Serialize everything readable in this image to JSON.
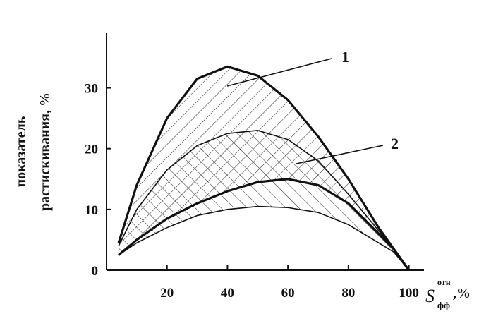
{
  "chart_data": {
    "type": "band",
    "y_label": [
      "показатель",
      "растискивания, %"
    ],
    "x_label": {
      "main": "S",
      "sup": "отн",
      "sub": "фф",
      "suffix": ",%"
    },
    "xlim": [
      0,
      105
    ],
    "ylim": [
      0,
      39
    ],
    "xticks": [
      20,
      40,
      60,
      80,
      100
    ],
    "yticks": [
      0,
      10,
      20,
      30
    ],
    "x": [
      4,
      10,
      20,
      30,
      40,
      50,
      60,
      70,
      80,
      90,
      95,
      100
    ],
    "bands": [
      {
        "name": "1",
        "line": "thick",
        "hatch": "/",
        "upper": [
          4.5,
          14,
          25,
          31.5,
          33.5,
          32,
          28,
          22,
          15,
          7,
          3.5,
          0
        ],
        "lower": [
          2.5,
          5,
          8.5,
          11,
          13,
          14.5,
          15,
          14,
          11,
          6,
          3.5,
          0
        ]
      },
      {
        "name": "2",
        "line": "thin",
        "hatch": "\\",
        "upper": [
          4,
          10,
          16.5,
          20.5,
          22.5,
          23,
          21.5,
          18,
          12.5,
          6.5,
          3.5,
          0
        ],
        "lower": [
          2.5,
          4.5,
          7,
          9,
          10,
          10.5,
          10.3,
          9.5,
          7.5,
          4.5,
          3,
          0
        ]
      }
    ]
  }
}
